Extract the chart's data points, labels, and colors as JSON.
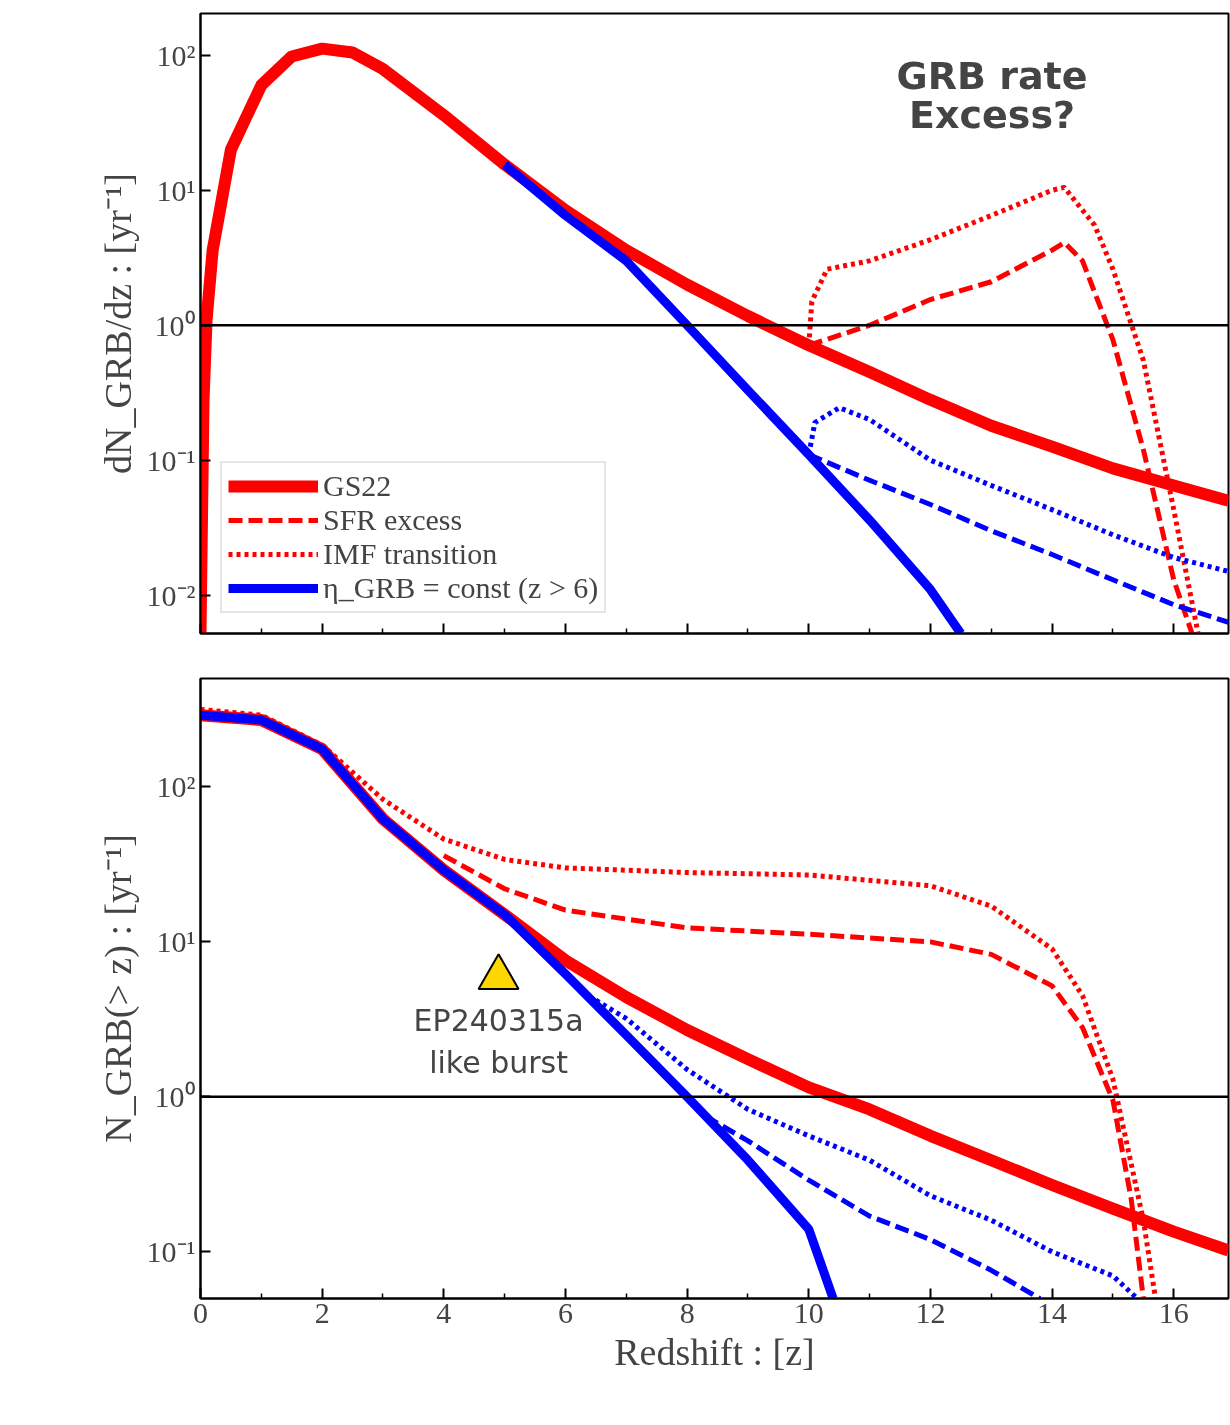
{
  "chart_data": [
    {
      "type": "line",
      "ylabel": "dN_GRB/dz : [yr⁻¹]",
      "log": "y",
      "grid": false,
      "legend": "bottom left",
      "tick_labels": "y",
      "xlim": [
        0,
        16.9
      ],
      "xticks": [
        {
          "value": 0,
          "label": null
        },
        {
          "value": 2,
          "label": null
        },
        {
          "value": 4,
          "label": null
        },
        {
          "value": 6,
          "label": null
        },
        {
          "value": 8,
          "label": null
        },
        {
          "value": 10,
          "label": null
        },
        {
          "value": 12,
          "label": null
        },
        {
          "value": 14,
          "label": null
        },
        {
          "value": 16,
          "label": null
        }
      ],
      "ylim": [
        0.0052,
        204
      ],
      "yticks": [
        {
          "value": 0.01,
          "label": "10⁻²"
        },
        {
          "value": 0.1,
          "label": "10⁻¹"
        },
        {
          "value": 1,
          "label": "10⁰"
        },
        {
          "value": 10,
          "label": "10¹"
        },
        {
          "value": 100,
          "label": "10²"
        }
      ],
      "annotations": [
        "GRB rate\nExcess?"
      ],
      "ref_lines": [
        {
          "axis": "y",
          "value": 1,
          "color": "#000000"
        }
      ],
      "series": [
        {
          "name": "GS22",
          "color": "#ff0000",
          "line_style": "solid",
          "x": [
            0,
            0.05,
            0.1,
            0.2,
            0.5,
            1,
            1.5,
            2,
            2.5,
            3,
            4,
            5,
            6,
            7,
            8,
            9,
            10,
            11,
            12,
            13,
            14,
            15,
            16,
            16.9
          ],
          "values": [
            0.0052,
            0.28,
            1.1,
            3.6,
            20,
            60,
            98,
            112,
            105,
            79,
            36,
            15.5,
            7.1,
            3.6,
            2.0,
            1.17,
            0.71,
            0.45,
            0.28,
            0.18,
            0.126,
            0.087,
            0.065,
            0.05
          ]
        },
        {
          "name": "SFR excess",
          "color": "#ff0000",
          "line_style": "dashed",
          "x": [
            10,
            11,
            12,
            13,
            14,
            14.2,
            14.5,
            15,
            15.5,
            16,
            16.3
          ],
          "values": [
            0.71,
            1.0,
            1.55,
            2.1,
            3.6,
            4.1,
            3.0,
            0.78,
            0.12,
            0.013,
            0.0052
          ]
        },
        {
          "name": "IMF transition",
          "color": "#ff0000",
          "line_style": "dotted",
          "x": [
            10,
            10.05,
            10.3,
            11,
            12,
            13,
            14,
            14.2,
            14.7,
            15,
            15.5,
            16,
            16.4
          ],
          "values": [
            0.71,
            1.5,
            2.6,
            3.0,
            4.3,
            6.5,
            10,
            10.5,
            5.5,
            2.6,
            0.55,
            0.043,
            0.0052
          ]
        },
        {
          "name": "η_GRB = const (z > 6)",
          "color": "#0000ff",
          "line_style": "solid",
          "x": [
            5,
            6,
            7,
            8,
            9,
            10,
            11,
            12,
            12.5
          ],
          "values": [
            15.5,
            6.5,
            3.0,
            1.0,
            0.33,
            0.11,
            0.036,
            0.011,
            0.0052
          ]
        },
        {
          "color": "#0000ff",
          "line_style": "dashed",
          "x": [
            10,
            11,
            12,
            13,
            14,
            15,
            16,
            16.9
          ],
          "values": [
            0.11,
            0.071,
            0.047,
            0.03,
            0.02,
            0.013,
            0.0085,
            0.0063
          ]
        },
        {
          "color": "#0000ff",
          "line_style": "dotted",
          "x": [
            10,
            10.1,
            10.5,
            11,
            12,
            13,
            14,
            15,
            16,
            16.9
          ],
          "values": [
            0.11,
            0.19,
            0.245,
            0.2,
            0.1,
            0.065,
            0.043,
            0.028,
            0.019,
            0.015
          ]
        }
      ]
    },
    {
      "type": "line",
      "xlabel": "Redshift : [z]",
      "ylabel": "N_GRB(> z) : [yr⁻¹]",
      "log": "y",
      "grid": false,
      "legend": false,
      "xlim": [
        0,
        16.9
      ],
      "xticks": [
        0,
        2,
        4,
        6,
        8,
        10,
        12,
        14,
        16
      ],
      "ylim": [
        0.05,
        500
      ],
      "yticks": [
        {
          "value": 0.1,
          "label": "10⁻¹"
        },
        {
          "value": 1,
          "label": "10⁰"
        },
        {
          "value": 10,
          "label": "10¹"
        },
        {
          "value": 100,
          "label": "10²"
        }
      ],
      "annotations": [
        "EP240315a\nlike burst"
      ],
      "ref_lines": [
        {
          "axis": "y",
          "value": 1,
          "color": "#000000"
        }
      ],
      "series": [
        {
          "color": "#ff0000",
          "line_style": "solid",
          "x": [
            0,
            1,
            2,
            3,
            4,
            5,
            6,
            7,
            8,
            9,
            10,
            11,
            12,
            13,
            14,
            15,
            16,
            16.9
          ],
          "values": [
            290,
            270,
            175,
            62,
            29,
            15,
            7.6,
            4.4,
            2.7,
            1.75,
            1.15,
            0.83,
            0.56,
            0.39,
            0.27,
            0.19,
            0.135,
            0.102
          ]
        },
        {
          "color": "#ff0000",
          "line_style": "dashed",
          "x": [
            4,
            5,
            6,
            8,
            10,
            12,
            13,
            14,
            14.5,
            15,
            15.3,
            15.5
          ],
          "values": [
            36,
            22,
            16,
            12.3,
            11.2,
            10,
            8.3,
            5.2,
            2.8,
            0.95,
            0.22,
            0.05
          ]
        },
        {
          "color": "#ff0000",
          "line_style": "dotted",
          "x": [
            0,
            1,
            2,
            3,
            4,
            5,
            6,
            8,
            10,
            12,
            13,
            14,
            14.5,
            15,
            15.5,
            15.7
          ],
          "values": [
            316,
            290,
            186,
            83,
            46,
            34,
            30,
            28,
            27,
            23,
            17,
            9,
            4.5,
            1.3,
            0.16,
            0.05
          ]
        },
        {
          "color": "#0000ff",
          "line_style": "solid",
          "x": [
            0,
            1,
            2,
            3,
            4,
            5,
            6,
            7,
            8,
            9,
            10,
            10.4
          ],
          "values": [
            290,
            270,
            175,
            62,
            29,
            15,
            6.2,
            2.5,
            1.0,
            0.39,
            0.14,
            0.05
          ]
        },
        {
          "color": "#0000ff",
          "line_style": "dashed",
          "x": [
            8.3,
            9,
            10,
            11,
            12,
            13,
            13.8
          ],
          "values": [
            0.75,
            0.52,
            0.29,
            0.17,
            0.12,
            0.076,
            0.05
          ]
        },
        {
          "color": "#0000ff",
          "line_style": "dotted",
          "x": [
            6.5,
            7,
            8,
            9,
            10,
            11,
            12,
            13,
            14,
            15,
            15.4
          ],
          "values": [
            4.2,
            3.2,
            1.5,
            0.83,
            0.56,
            0.39,
            0.23,
            0.16,
            0.1,
            0.07,
            0.05
          ]
        },
        {
          "type": "scatter",
          "marker": "triangle",
          "color": "#ffd700",
          "x": [
            4.9
          ],
          "values": [
            5.9
          ]
        }
      ]
    }
  ]
}
